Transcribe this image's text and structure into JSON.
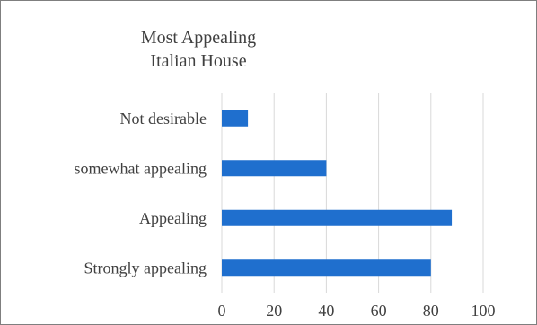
{
  "chart_data": {
    "type": "bar",
    "orientation": "horizontal",
    "title_lines": [
      "Most Appealing",
      "Italian House"
    ],
    "categories": [
      "Not desirable",
      "somewhat appealing",
      "Appealing",
      "Strongly appealing"
    ],
    "values": [
      10,
      40,
      88,
      80
    ],
    "xlim": [
      0,
      100
    ],
    "xticks": [
      0,
      20,
      40,
      60,
      80,
      100
    ],
    "grid": "vertical",
    "legend": "none",
    "bar_color": "#1f6fce",
    "grid_color": "#d9d9d9"
  }
}
